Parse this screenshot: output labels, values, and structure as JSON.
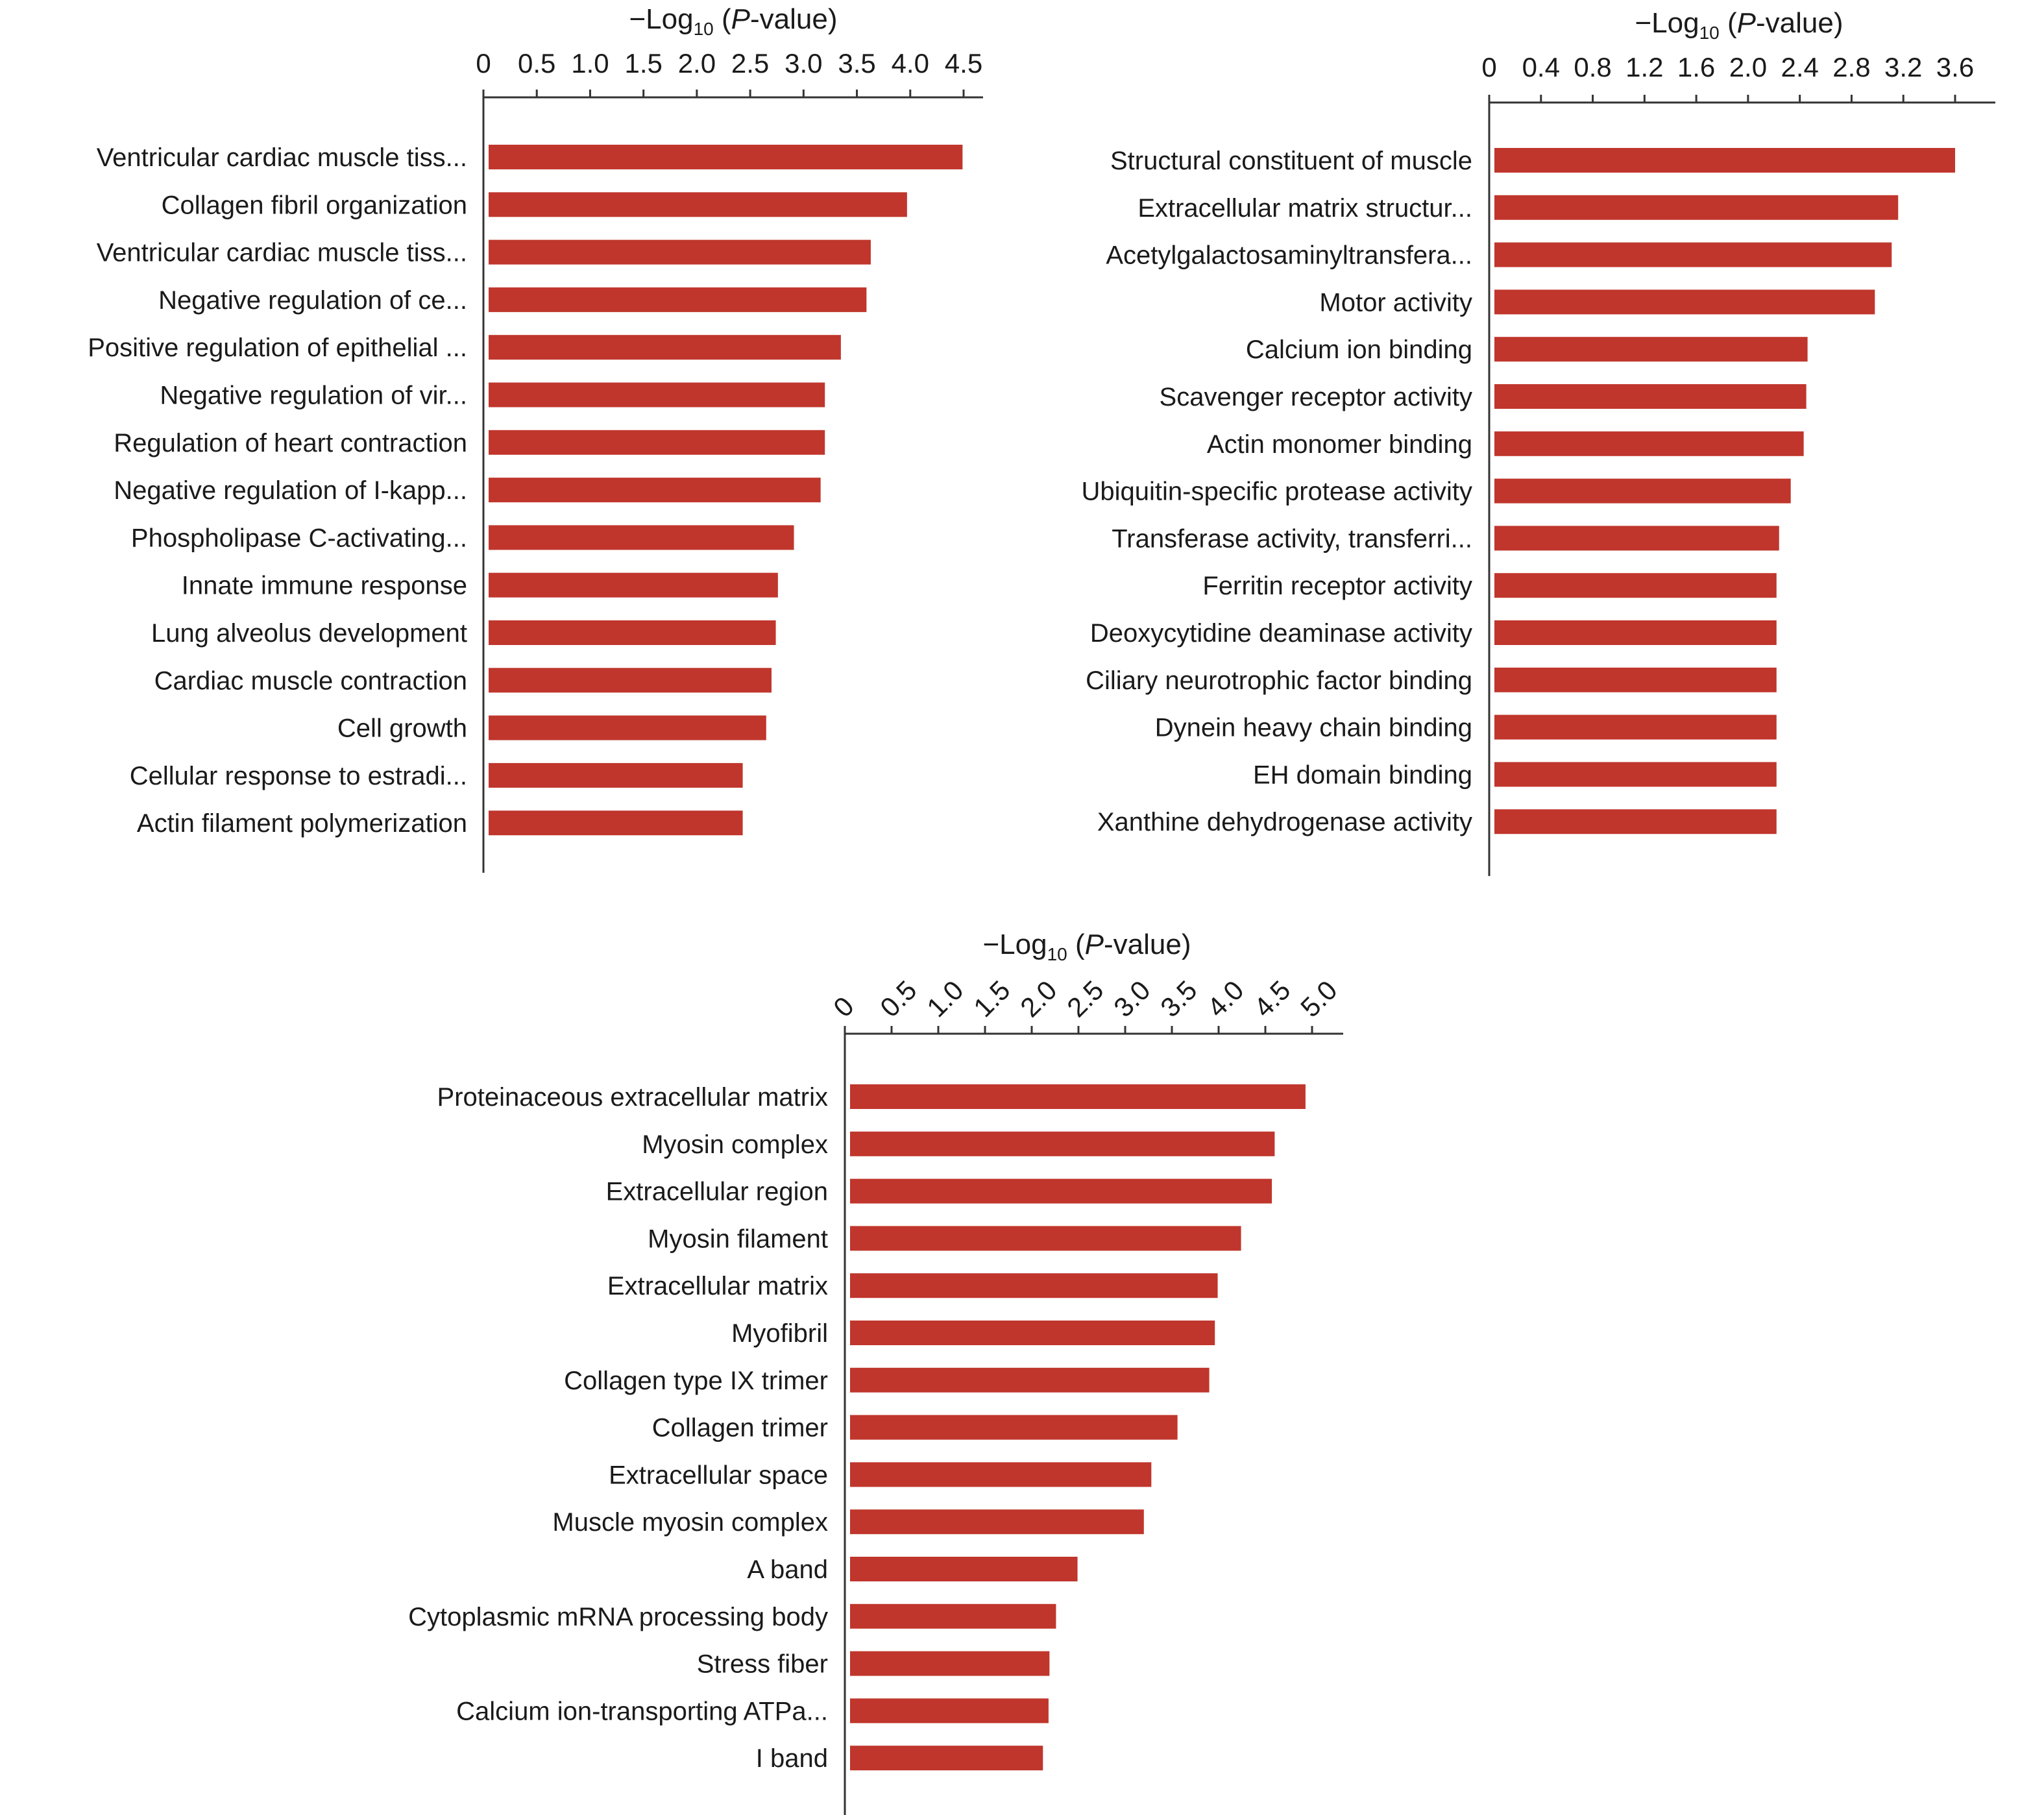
{
  "colors": {
    "bar": "#c0362c",
    "axis": "#333333",
    "text": "#1a1a1a"
  },
  "chart_data": [
    {
      "type": "bar",
      "orientation": "horizontal",
      "axis_title_prefix": "−Log",
      "axis_title_subscript": "10",
      "axis_title_italic": "P",
      "axis_title_suffix": "-value)",
      "axis_title_open": " (",
      "xlim": [
        0,
        4.5
      ],
      "ticks": [
        "0",
        "0.5",
        "1.0",
        "1.5",
        "2.0",
        "2.5",
        "3.0",
        "3.5",
        "4.0",
        "4.5"
      ],
      "tick_values": [
        0,
        0.5,
        1.0,
        1.5,
        2.0,
        2.5,
        3.0,
        3.5,
        4.0,
        4.5
      ],
      "categories": [
        "Ventricular cardiac muscle tiss...",
        "Collagen fibril organization",
        "Ventricular cardiac muscle tiss...",
        "Negative regulation of ce...",
        "Positive regulation of epithelial ...",
        "Negative regulation of vir...",
        "Regulation of heart contraction",
        "Negative regulation of I-kapp...",
        "Phospholipase C-activating...",
        "Innate immune response",
        "Lung alveolus development",
        "Cardiac muscle contraction",
        "Cell growth",
        "Cellular response to estradi...",
        "Actin filament polymerization"
      ],
      "values": [
        4.49,
        3.97,
        3.63,
        3.59,
        3.35,
        3.2,
        3.2,
        3.16,
        2.91,
        2.76,
        2.74,
        2.7,
        2.65,
        2.43,
        2.43
      ]
    },
    {
      "type": "bar",
      "orientation": "horizontal",
      "axis_title_prefix": "−Log",
      "axis_title_subscript": "10",
      "axis_title_italic": "P",
      "axis_title_suffix": "-value)",
      "axis_title_open": " (",
      "xlim": [
        0,
        3.8
      ],
      "ticks": [
        "0",
        "0.4",
        "0.8",
        "1.2",
        "1.6",
        "2.0",
        "2.4",
        "2.8",
        "3.2",
        "3.6"
      ],
      "tick_values": [
        0,
        0.4,
        0.8,
        1.2,
        1.6,
        2.0,
        2.4,
        2.8,
        3.2,
        3.6
      ],
      "categories": [
        "Structural constituent of muscle",
        "Extracellular matrix structur...",
        "Acetylgalactosaminyltransfera...",
        "Motor activity",
        "Calcium ion binding",
        "Scavenger receptor activity",
        "Actin monomer binding",
        "Ubiquitin-specific protease activity",
        "Transferase activity, transferri...",
        "Ferritin receptor activity",
        "Deoxycytidine deaminase activity",
        "Ciliary neurotrophic factor binding",
        "Dynein heavy chain binding",
        "EH domain binding",
        "Xanthine dehydrogenase activity"
      ],
      "values": [
        3.6,
        3.16,
        3.11,
        2.98,
        2.46,
        2.45,
        2.43,
        2.33,
        2.24,
        2.22,
        2.22,
        2.22,
        2.22,
        2.22,
        2.22
      ]
    },
    {
      "type": "bar",
      "orientation": "horizontal",
      "axis_title_prefix": "−Log",
      "axis_title_subscript": "10",
      "axis_title_italic": "P",
      "axis_title_suffix": "-value)",
      "axis_title_open": " (",
      "xlim": [
        0,
        5.35
      ],
      "ticks": [
        "0",
        "0.5",
        "1.0",
        "1.5",
        "2.0",
        "2.5",
        "3.0",
        "3.5",
        "4.0",
        "4.5",
        "5.0"
      ],
      "tick_values": [
        0,
        0.5,
        1.0,
        1.5,
        2.0,
        2.5,
        3.0,
        3.5,
        4.0,
        4.5,
        5.0
      ],
      "tick_rotation": -45,
      "categories": [
        "Proteinaceous extracellular matrix",
        "Myosin complex",
        "Extracellular region",
        "Myosin filament",
        "Extracellular matrix",
        "Myofibril",
        "Collagen type IX trimer",
        "Collagen trimer",
        "Extracellular space",
        "Muscle myosin complex",
        "A band",
        "Cytoplasmic mRNA processing body",
        "Stress fiber",
        "Calcium ion-transporting ATPa...",
        "I band"
      ],
      "values": [
        4.93,
        4.6,
        4.57,
        4.24,
        3.99,
        3.96,
        3.9,
        3.56,
        3.28,
        3.2,
        2.49,
        2.26,
        2.19,
        2.18,
        2.12
      ]
    }
  ]
}
